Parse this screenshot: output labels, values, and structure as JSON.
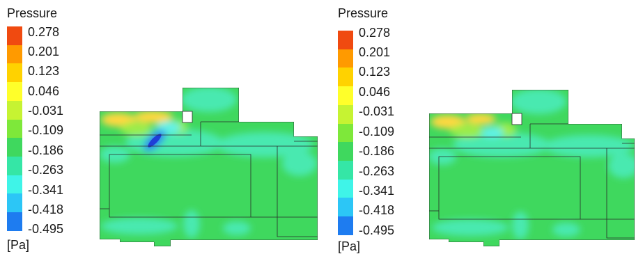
{
  "colors": {
    "scale": [
      "#f04a10",
      "#ff9a00",
      "#ffd200",
      "#ffff2a",
      "#c6f332",
      "#7ee83a",
      "#3fd85e",
      "#35e6a6",
      "#3ff4e8",
      "#2cc6f6",
      "#1e7cf0",
      "#1034e6"
    ],
    "field_base": "#3fd85e",
    "field_teal": "#48e9b0",
    "field_cyan": "#62f2e6",
    "field_hot": "#ffd840",
    "field_warm": "#9cec4a",
    "field_blue": "#2e86ee",
    "field_deep": "#1f3fd8"
  },
  "panels": [
    {
      "legend": {
        "title": "Pressure",
        "ticks": [
          "0.278",
          "0.201",
          "0.123",
          "0.046",
          "-0.031",
          "-0.109",
          "-0.186",
          "-0.263",
          "-0.341",
          "-0.418",
          "-0.495"
        ],
        "unit": "[Pa]"
      }
    },
    {
      "legend": {
        "title": "Pressure",
        "ticks": [
          "0.278",
          "0.201",
          "0.123",
          "0.046",
          "-0.031",
          "-0.109",
          "-0.186",
          "-0.263",
          "-0.341",
          "-0.418",
          "-0.495"
        ],
        "unit": "[Pa]"
      }
    }
  ]
}
